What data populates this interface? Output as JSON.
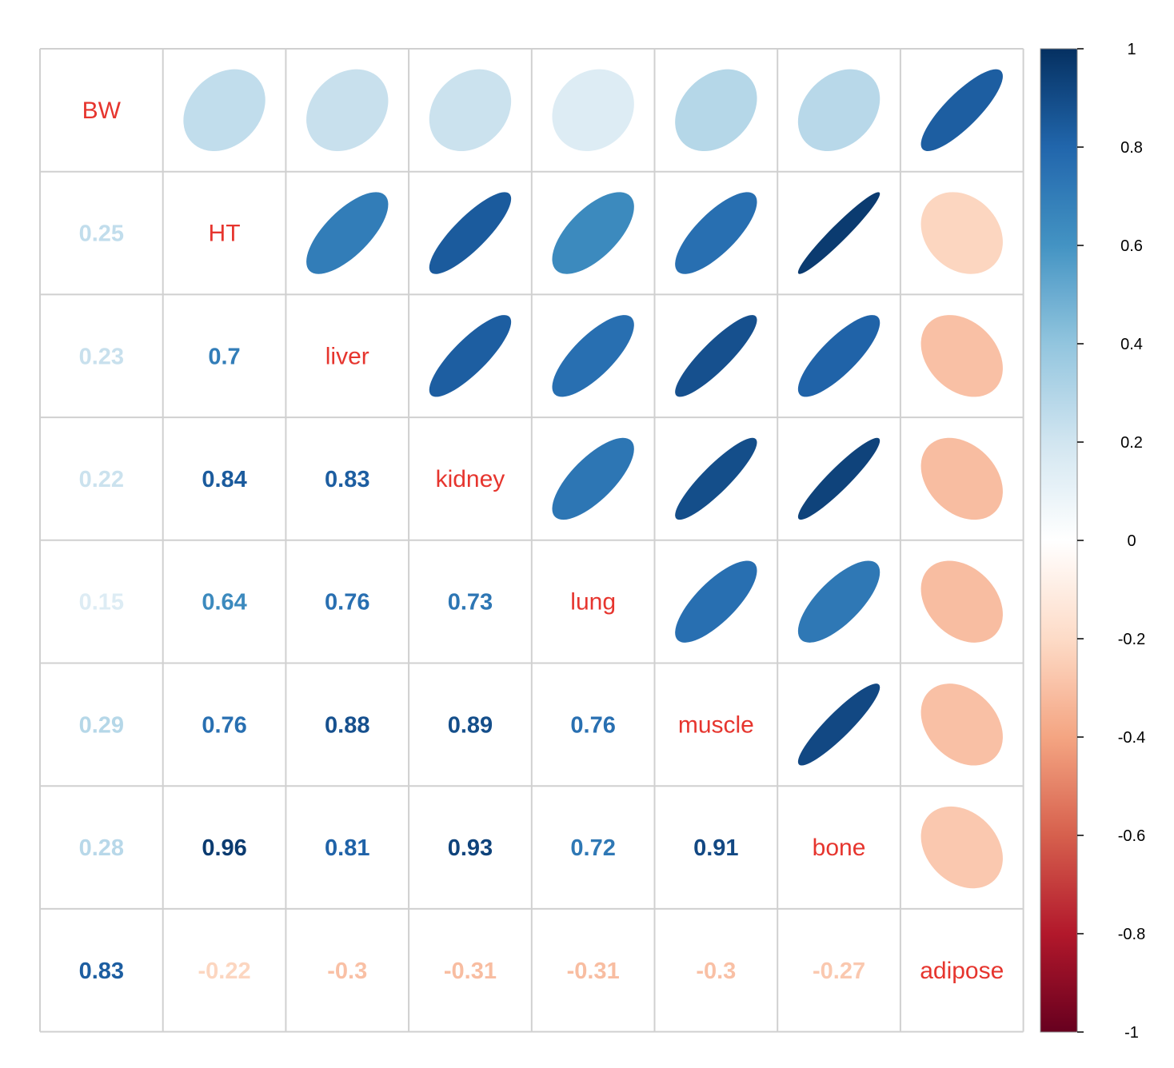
{
  "chart_data": {
    "type": "heatmap",
    "title": "",
    "variables": [
      "BW",
      "HT",
      "liver",
      "kidney",
      "lung",
      "muscle",
      "bone",
      "adipose"
    ],
    "correlation_matrix": [
      [
        1,
        0.25,
        0.23,
        0.22,
        0.15,
        0.29,
        0.28,
        0.83
      ],
      [
        0.25,
        1,
        0.7,
        0.84,
        0.64,
        0.76,
        0.96,
        -0.22
      ],
      [
        0.23,
        0.7,
        1,
        0.83,
        0.76,
        0.88,
        0.81,
        -0.3
      ],
      [
        0.22,
        0.84,
        0.83,
        1,
        0.73,
        0.89,
        0.93,
        -0.31
      ],
      [
        0.15,
        0.64,
        0.76,
        0.73,
        1,
        0.76,
        0.72,
        -0.31
      ],
      [
        0.29,
        0.76,
        0.88,
        0.89,
        0.76,
        1,
        0.91,
        -0.3
      ],
      [
        0.28,
        0.96,
        0.81,
        0.93,
        0.72,
        0.91,
        1,
        -0.27
      ],
      [
        0.83,
        -0.22,
        -0.3,
        -0.31,
        -0.31,
        -0.3,
        -0.27,
        1
      ]
    ],
    "upper_triangle": "ellipse",
    "lower_triangle": "number",
    "diagonal": "variable-name",
    "diagonal_label_color": "#e6352e",
    "colorbar": {
      "position": "right",
      "range": [
        -1,
        1
      ],
      "ticks": [
        "1",
        "0.8",
        "0.6",
        "0.4",
        "0.2",
        "0",
        "-0.2",
        "-0.4",
        "-0.6",
        "-0.8",
        "-1"
      ]
    },
    "color_scale": {
      "colors": [
        "#67001f",
        "#b2182b",
        "#d6604d",
        "#f4a582",
        "#fddbc7",
        "#ffffff",
        "#d1e5f0",
        "#92c5de",
        "#4393c3",
        "#2166ac",
        "#053061"
      ]
    },
    "grid": true
  }
}
